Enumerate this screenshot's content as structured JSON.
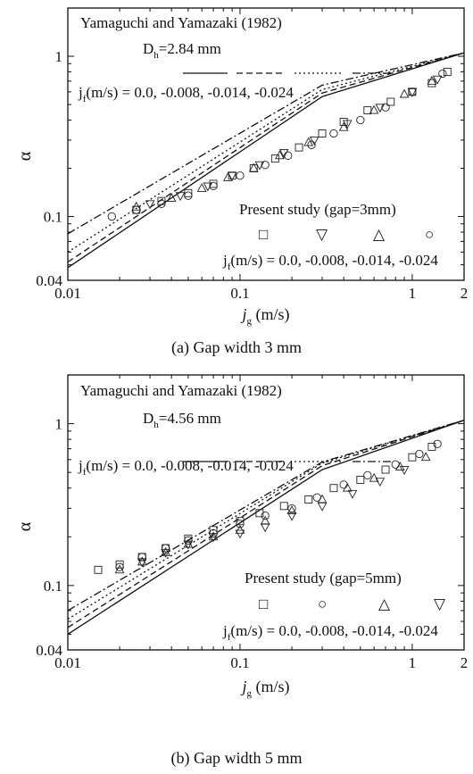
{
  "chart_data": [
    {
      "type": "scatter",
      "caption": "(a)  Gap width 3 mm",
      "xlabel_main": "j",
      "xlabel_sub": "g",
      "xlabel_unit": " (m/s)",
      "ylabel": "α",
      "xscale": "log",
      "yscale": "log",
      "xlim": [
        0.01,
        2
      ],
      "ylim": [
        0.04,
        2
      ],
      "xticks": [
        {
          "v": 0.01,
          "label": "0.01"
        },
        {
          "v": 0.1,
          "label": "0.1"
        },
        {
          "v": 1,
          "label": "1"
        },
        {
          "v": 2,
          "label": "2"
        }
      ],
      "yticks": [
        {
          "v": 0.04,
          "label": "0.04"
        },
        {
          "v": 0.1,
          "label": "0.1"
        },
        {
          "v": 1,
          "label": "1"
        }
      ],
      "ref_title": "Yamaguchi and Yamazaki (1982)",
      "dh_main": "D",
      "dh_sub": "h",
      "dh_value": "=2.84 mm",
      "jf_main": "j",
      "jf_sub": "f",
      "jf_text": "(m/s) =  0.0, -0.008, -0.014, -0.024",
      "present_title": "Present study (gap=3mm)",
      "marker_symbols": [
        "□",
        "▽",
        "△",
        "○"
      ],
      "jf2_text": "(m/s) =  0.0, -0.008, -0.014, -0.024",
      "lines": [
        {
          "name": "0.0",
          "dash": "solid",
          "x": [
            0.01,
            0.3,
            2
          ],
          "y": [
            0.048,
            0.56,
            1.05
          ]
        },
        {
          "name": "-0.008",
          "dash": "dashed",
          "x": [
            0.01,
            0.3,
            2
          ],
          "y": [
            0.052,
            0.59,
            1.05
          ]
        },
        {
          "name": "-0.014",
          "dash": "dotted",
          "x": [
            0.01,
            0.3,
            2
          ],
          "y": [
            0.06,
            0.62,
            1.05
          ]
        },
        {
          "name": "-0.024",
          "dash": "dashdot",
          "x": [
            0.01,
            0.3,
            2
          ],
          "y": [
            0.078,
            0.66,
            1.05
          ]
        }
      ],
      "series": [
        {
          "name": "0.0",
          "marker": "square",
          "x": [
            0.025,
            0.035,
            0.05,
            0.07,
            0.09,
            0.12,
            0.16,
            0.22,
            0.3,
            0.4,
            0.55,
            0.75,
            1.0,
            1.3,
            1.6
          ],
          "y": [
            0.11,
            0.125,
            0.14,
            0.16,
            0.18,
            0.2,
            0.23,
            0.27,
            0.33,
            0.39,
            0.46,
            0.52,
            0.6,
            0.68,
            0.8
          ]
        },
        {
          "name": "-0.008",
          "marker": "triangle-down",
          "x": [
            0.03,
            0.045,
            0.065,
            0.09,
            0.13,
            0.18,
            0.27,
            0.42,
            0.65,
            1.0,
            1.4
          ],
          "y": [
            0.12,
            0.135,
            0.155,
            0.18,
            0.21,
            0.25,
            0.3,
            0.38,
            0.48,
            0.6,
            0.72
          ]
        },
        {
          "name": "-0.014",
          "marker": "triangle-up",
          "x": [
            0.025,
            0.04,
            0.06,
            0.085,
            0.12,
            0.17,
            0.25,
            0.4,
            0.6,
            0.9,
            1.3
          ],
          "y": [
            0.115,
            0.13,
            0.15,
            0.175,
            0.2,
            0.24,
            0.29,
            0.36,
            0.46,
            0.58,
            0.7
          ]
        },
        {
          "name": "-0.024",
          "marker": "circle",
          "x": [
            0.018,
            0.025,
            0.035,
            0.05,
            0.07,
            0.1,
            0.14,
            0.19,
            0.26,
            0.35,
            0.5,
            0.7,
            1.0,
            1.5
          ],
          "y": [
            0.1,
            0.11,
            0.12,
            0.135,
            0.155,
            0.18,
            0.21,
            0.24,
            0.28,
            0.33,
            0.4,
            0.48,
            0.6,
            0.78
          ]
        }
      ]
    },
    {
      "type": "scatter",
      "caption": "(b)  Gap width 5 mm",
      "xlabel_main": "j",
      "xlabel_sub": "g",
      "xlabel_unit": " (m/s)",
      "ylabel": "α",
      "xscale": "log",
      "yscale": "log",
      "xlim": [
        0.01,
        2
      ],
      "ylim": [
        0.04,
        2
      ],
      "xticks": [
        {
          "v": 0.01,
          "label": "0.01"
        },
        {
          "v": 0.1,
          "label": "0.1"
        },
        {
          "v": 1,
          "label": "1"
        },
        {
          "v": 2,
          "label": "2"
        }
      ],
      "yticks": [
        {
          "v": 0.04,
          "label": "0.04"
        },
        {
          "v": 0.1,
          "label": "0.1"
        },
        {
          "v": 1,
          "label": "1"
        }
      ],
      "ref_title": "Yamaguchi and Yamazaki (1982)",
      "dh_main": "D",
      "dh_sub": "h",
      "dh_value": "=4.56 mm",
      "jf_main": "j",
      "jf_sub": "f",
      "jf_text": "(m/s) =  0.0, -0.008, -0.014, -0.024",
      "present_title": "Present study (gap=5mm)",
      "marker_symbols": [
        "□",
        "○",
        "△",
        "▽"
      ],
      "jf2_text": "(m/s) =  0.0, -0.008, -0.014, -0.024",
      "lines": [
        {
          "name": "0.0",
          "dash": "solid",
          "x": [
            0.01,
            0.3,
            2
          ],
          "y": [
            0.05,
            0.52,
            1.05
          ]
        },
        {
          "name": "-0.008",
          "dash": "dashed",
          "x": [
            0.01,
            0.3,
            2
          ],
          "y": [
            0.055,
            0.55,
            1.05
          ]
        },
        {
          "name": "-0.014",
          "dash": "dotted",
          "x": [
            0.01,
            0.3,
            2
          ],
          "y": [
            0.062,
            0.57,
            1.05
          ]
        },
        {
          "name": "-0.024",
          "dash": "dashdot",
          "x": [
            0.01,
            0.3,
            2
          ],
          "y": [
            0.07,
            0.58,
            1.05
          ]
        }
      ],
      "series": [
        {
          "name": "0.0",
          "marker": "square",
          "x": [
            0.015,
            0.02,
            0.027,
            0.037,
            0.05,
            0.07,
            0.1,
            0.13,
            0.18,
            0.25,
            0.35,
            0.5,
            0.7,
            1.0,
            1.3
          ],
          "y": [
            0.125,
            0.135,
            0.15,
            0.17,
            0.195,
            0.22,
            0.25,
            0.28,
            0.31,
            0.34,
            0.4,
            0.45,
            0.52,
            0.62,
            0.72
          ]
        },
        {
          "name": "-0.008",
          "marker": "circle",
          "x": [
            0.02,
            0.027,
            0.037,
            0.05,
            0.07,
            0.1,
            0.14,
            0.2,
            0.28,
            0.4,
            0.55,
            0.8,
            1.1,
            1.4
          ],
          "y": [
            0.13,
            0.15,
            0.17,
            0.19,
            0.21,
            0.24,
            0.27,
            0.3,
            0.35,
            0.42,
            0.48,
            0.56,
            0.65,
            0.75
          ]
        },
        {
          "name": "-0.014",
          "marker": "triangle-up",
          "x": [
            0.02,
            0.027,
            0.037,
            0.05,
            0.07,
            0.1,
            0.14,
            0.2,
            0.3,
            0.42,
            0.6,
            0.85,
            1.2
          ],
          "y": [
            0.125,
            0.14,
            0.16,
            0.18,
            0.2,
            0.22,
            0.25,
            0.29,
            0.34,
            0.4,
            0.46,
            0.54,
            0.62
          ]
        },
        {
          "name": "-0.024",
          "marker": "triangle-down",
          "x": [
            0.027,
            0.037,
            0.05,
            0.07,
            0.1,
            0.14,
            0.2,
            0.3,
            0.45,
            0.65,
            0.9
          ],
          "y": [
            0.14,
            0.16,
            0.18,
            0.2,
            0.21,
            0.23,
            0.27,
            0.31,
            0.37,
            0.44,
            0.52
          ]
        }
      ]
    }
  ]
}
